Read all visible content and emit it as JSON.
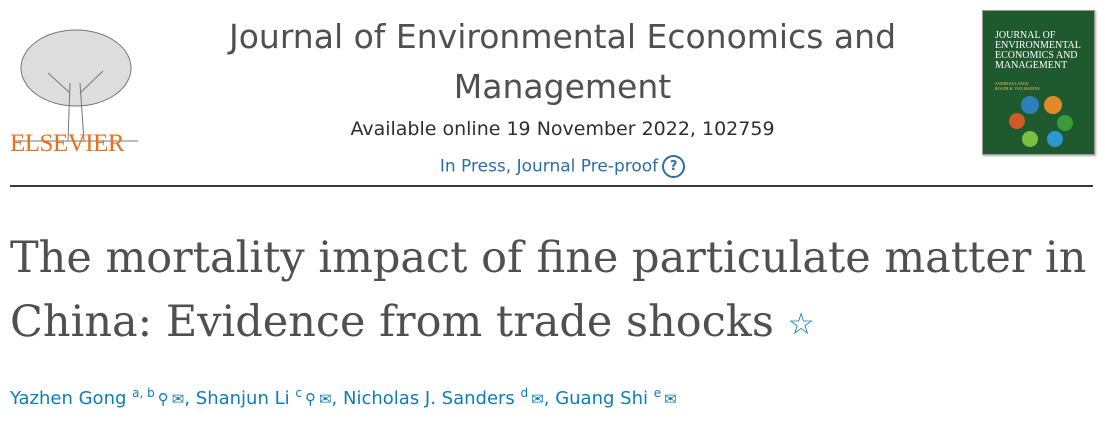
{
  "publisher": {
    "logo_text": "ELSEVIER",
    "colors": {
      "logo": "#e9711c"
    }
  },
  "journal": {
    "title_line1": "Journal of Environmental Economics and",
    "title_line2": "Management",
    "available": "Available online 19 November 2022, 102759",
    "status": "In Press, Journal Pre-proof",
    "help_icon": "?"
  },
  "cover": {
    "title": "JOURNAL OF ENVIRONMENTAL ECONOMICS AND MANAGEMENT",
    "editors": [
      "ANDREAS LANGE",
      "ROGER H. VON HAEFEN"
    ]
  },
  "article": {
    "title_line1": "The mortality impact of fine particulate matter in",
    "title_line2": "China: Evidence from trade shocks",
    "star": "☆"
  },
  "authors": [
    {
      "name": "Yazhen Gong",
      "aff": "a, b",
      "person_icon": true
    },
    {
      "name": "Shanjun Li",
      "aff": "c",
      "person_icon": true
    },
    {
      "name": "Nicholas J. Sanders",
      "aff": "d",
      "person_icon": false
    },
    {
      "name": "Guang Shi",
      "aff": "e",
      "person_icon": false
    }
  ],
  "icons": {
    "person": "person-icon",
    "email": "email-icon"
  },
  "colors": {
    "link": "#0c7dbb",
    "status": "#2e6dab",
    "title": "#505050"
  }
}
